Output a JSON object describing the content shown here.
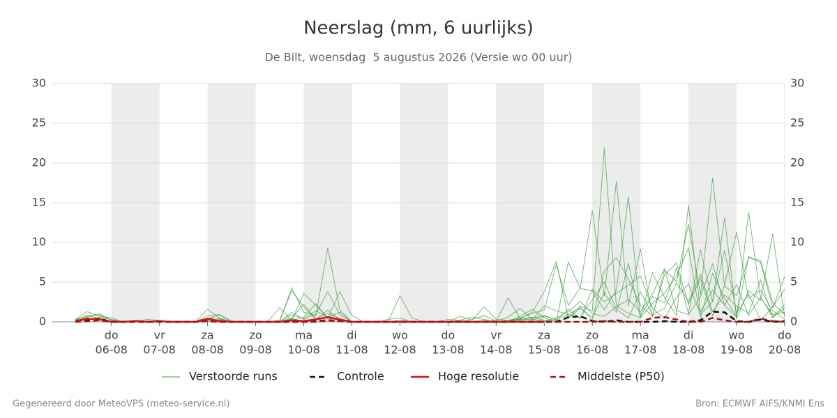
{
  "chart_data": {
    "type": "line",
    "title": "Neerslag (mm, 6 uurlijks)",
    "subtitle": "De Bilt, woensdag  5 augustus 2026 (Versie wo 00 uur)",
    "categories": [
      null,
      null,
      null,
      "06-08",
      null,
      null,
      null,
      "07-08",
      null,
      null,
      null,
      "08-08",
      null,
      null,
      null,
      "09-08",
      null,
      null,
      null,
      "10-08",
      null,
      null,
      null,
      "11-08",
      null,
      null,
      null,
      "12-08",
      null,
      null,
      null,
      "13-08",
      null,
      null,
      null,
      "14-08",
      null,
      null,
      null,
      "15-08",
      null,
      null,
      null,
      "16-08",
      null,
      null,
      null,
      "17-08",
      null,
      null,
      null,
      "18-08",
      null,
      null,
      null,
      "19-08",
      null,
      null,
      null,
      "20-08"
    ],
    "weekdays": [
      null,
      null,
      null,
      "do",
      null,
      null,
      null,
      "vr",
      null,
      null,
      null,
      "za",
      null,
      null,
      null,
      "zo",
      null,
      null,
      null,
      "ma",
      null,
      null,
      null,
      "di",
      null,
      null,
      null,
      "wo",
      null,
      null,
      null,
      "do",
      null,
      null,
      null,
      "vr",
      null,
      null,
      null,
      "za",
      null,
      null,
      null,
      "zo",
      null,
      null,
      null,
      "ma",
      null,
      null,
      null,
      "di",
      null,
      null,
      null,
      "wo",
      null,
      null,
      null,
      "do"
    ],
    "ylim": [
      0,
      30
    ],
    "yticks": [
      0,
      5,
      10,
      15,
      20,
      25,
      30
    ],
    "grid": true,
    "ensemble": {
      "name": "Verstoorde runs",
      "color": "#3a9e3a",
      "members": [
        [
          0.3,
          1.3,
          0.7,
          0.5,
          0,
          0,
          0.1,
          0,
          0.1,
          0,
          0,
          1.6,
          0.5,
          0,
          0,
          0,
          0,
          0,
          4.3,
          1.2,
          0.8,
          9.3,
          1.5,
          0,
          0,
          0,
          0,
          3.3,
          0.5,
          0,
          0,
          0.3,
          0.2,
          0.6,
          0.3,
          0.1,
          3.0,
          0.4,
          1.2,
          3.8,
          7.6,
          0.5,
          2.0,
          1.4,
          21.9,
          2.0,
          1.1,
          0.5,
          6.2,
          3.1,
          0.8,
          14.7,
          1.2,
          4.0,
          2.1,
          0.6,
          13.8,
          3.0,
          0.9,
          1.2
        ],
        [
          0.1,
          0.6,
          0.9,
          0.2,
          0,
          0.2,
          0,
          0.1,
          0,
          0,
          0,
          0.4,
          0.9,
          0,
          0,
          0,
          0,
          1.8,
          0.2,
          3.6,
          2.1,
          0.5,
          3.8,
          0.8,
          0,
          0,
          0.1,
          0,
          0,
          0,
          0,
          0,
          0.7,
          0.2,
          1.9,
          0.3,
          0.2,
          0.5,
          1.1,
          1.5,
          7.2,
          2.1,
          4.3,
          14.0,
          3.2,
          17.7,
          2.0,
          9.2,
          0.6,
          6.5,
          5.1,
          12.3,
          3.4,
          18.1,
          4.5,
          3.3,
          8.1,
          7.5,
          1.8,
          5.7
        ],
        [
          0.2,
          0.8,
          0.4,
          0,
          0,
          0.1,
          0.3,
          0.2,
          0,
          0,
          0,
          0.3,
          0.1,
          0,
          0,
          0,
          0,
          0,
          0.9,
          0.4,
          1.4,
          0.6,
          1.2,
          0,
          0,
          0,
          0,
          0.2,
          0,
          0,
          0,
          0,
          0,
          0.3,
          0.8,
          0.1,
          0,
          0.7,
          1.6,
          0.5,
          0,
          7.5,
          4.2,
          3.9,
          1.5,
          4.0,
          15.8,
          0.8,
          3.2,
          2.4,
          6.8,
          1.0,
          9.1,
          2.5,
          13.1,
          0.4,
          3.9,
          2.7,
          11.1,
          0.6
        ],
        [
          0,
          0.3,
          0.5,
          0.1,
          0,
          0,
          0,
          0,
          0.1,
          0,
          0,
          0.8,
          0.9,
          0.1,
          0,
          0,
          0,
          0.2,
          3.9,
          1.9,
          0.3,
          1.1,
          0.4,
          0,
          0,
          0,
          0,
          0,
          0,
          0,
          0,
          0,
          0,
          0,
          0,
          0.1,
          0.6,
          1.7,
          0.3,
          2.0,
          1.4,
          0.9,
          1.8,
          0.3,
          6.4,
          8.1,
          5.4,
          2.1,
          0.7,
          5.9,
          7.4,
          2.2,
          5.5,
          0.8,
          4.6,
          11.3,
          2.9,
          4.0,
          1.4,
          0.3
        ],
        [
          0.1,
          0.2,
          0.6,
          0.3,
          0,
          0,
          0,
          0.1,
          0,
          0,
          0,
          0.2,
          0.3,
          0,
          0,
          0,
          0,
          0,
          0.5,
          2.2,
          0.4,
          0.6,
          0.1,
          0,
          0,
          0,
          0,
          0,
          0,
          0,
          0,
          0,
          0.2,
          0,
          0,
          0,
          0.1,
          0.3,
          0.6,
          0.2,
          0.1,
          0.4,
          1.7,
          0.6,
          3.7,
          1.2,
          7.4,
          0.5,
          2.3,
          3.6,
          5.8,
          9.3,
          0.5,
          6.1,
          3.0,
          0.7,
          8.2,
          7.7,
          2.4,
          0.9
        ],
        [
          0.2,
          0.5,
          0.3,
          0,
          0,
          0.1,
          0,
          0,
          0,
          0,
          0,
          0.5,
          0.4,
          0,
          0,
          0,
          0,
          0,
          1.2,
          0.3,
          1.0,
          3.8,
          0.9,
          0,
          0,
          0,
          0.3,
          0.5,
          0,
          0,
          0,
          0,
          0,
          0,
          0,
          0,
          0.2,
          0.3,
          0.5,
          0.8,
          0.2,
          1.6,
          0.4,
          4.1,
          2.5,
          3.6,
          4.6,
          5.8,
          1.7,
          0.4,
          3.1,
          4.8,
          0.9,
          2.6,
          9.0,
          1.1,
          3.5,
          0.2,
          1.9,
          4.1
        ],
        [
          0,
          0.4,
          0.2,
          0,
          0,
          0,
          0.1,
          0,
          0,
          0,
          0,
          0.1,
          0.2,
          0,
          0,
          0,
          0,
          0,
          0.4,
          0.1,
          0.3,
          1.5,
          0.2,
          0,
          0,
          0,
          0,
          0,
          0,
          0,
          0,
          0,
          0.1,
          0,
          0.2,
          0,
          0,
          0.2,
          0.3,
          0.1,
          0.5,
          1.3,
          2.6,
          1.0,
          0.7,
          1.9,
          2.8,
          1.3,
          3.5,
          6.7,
          1.4,
          0.9,
          3.2,
          7.3,
          2.1,
          4.7,
          0.8,
          3.1,
          0.6,
          2.2
        ],
        [
          0.3,
          0.7,
          1.0,
          0.2,
          0,
          0,
          0,
          0,
          0,
          0,
          0,
          0.3,
          0.2,
          0,
          0,
          0,
          0,
          0,
          0.2,
          0.6,
          2.3,
          0.4,
          0.3,
          0,
          0,
          0,
          0,
          0,
          0,
          0,
          0,
          0,
          0,
          0,
          0,
          0,
          0.1,
          0.4,
          0.2,
          0.7,
          0.3,
          0.9,
          0.6,
          2.8,
          5.0,
          1.6,
          0.5,
          3.8,
          0.9,
          1.7,
          4.9,
          2.6,
          6.0,
          1.3,
          3.4,
          2.0,
          1.1,
          5.3,
          0.5,
          1.8
        ]
      ]
    },
    "series": [
      {
        "name": "Controle",
        "color": "#111111",
        "dash": true,
        "values": [
          0.1,
          0.3,
          0.4,
          0,
          0,
          0,
          0,
          0,
          0,
          0,
          0,
          0.1,
          0,
          0,
          0,
          0,
          0,
          0,
          0,
          0,
          0.1,
          0.2,
          0.1,
          0,
          0,
          0,
          0,
          0,
          0,
          0,
          0,
          0,
          0,
          0,
          0,
          0,
          0,
          0,
          0,
          0,
          0,
          0.6,
          0.7,
          0.1,
          0,
          0.2,
          0,
          0,
          0,
          0.1,
          0,
          0,
          0.2,
          1.3,
          1.2,
          0.1,
          0,
          0.3,
          0,
          0.1
        ]
      },
      {
        "name": "Hoge resolutie",
        "color": "#dd1111",
        "dash": false,
        "values": [
          0.1,
          0.4,
          0.3,
          0,
          0,
          0.1,
          0,
          0.1,
          0,
          0,
          0,
          0.4,
          0.1,
          0,
          0,
          0,
          0,
          0,
          0.2,
          0.1,
          0.3,
          0.6,
          0.3,
          0,
          0,
          0,
          0,
          0,
          0,
          0,
          0,
          0,
          0,
          0,
          0,
          0,
          0,
          0,
          0,
          0,
          null,
          null,
          null,
          null,
          null,
          null,
          null,
          null,
          null,
          null,
          null,
          null,
          null,
          null,
          null,
          null,
          null,
          null,
          null,
          null
        ]
      },
      {
        "name": "Middelste (P50)",
        "color": "#aa1111",
        "dash": true,
        "values": [
          0,
          0.1,
          0.2,
          0,
          0,
          0,
          0,
          0,
          0,
          0,
          0,
          0.1,
          0,
          0,
          0,
          0,
          0,
          0,
          0,
          0,
          0,
          0.2,
          0.1,
          0,
          0,
          0,
          0,
          0,
          0,
          0,
          0,
          0,
          0,
          0,
          0,
          0,
          0,
          0,
          0,
          0,
          0,
          0,
          0,
          0,
          0.1,
          0,
          0,
          0,
          0.5,
          0.6,
          0.3,
          0,
          0,
          0.5,
          0.2,
          0,
          0,
          0.4,
          0.1,
          0
        ]
      }
    ],
    "footer_left": "Gegenereerd door MeteoVPS (meteo-service.nl)",
    "footer_right": "Bron: ECMWF AIFS/KNMI Ens"
  }
}
